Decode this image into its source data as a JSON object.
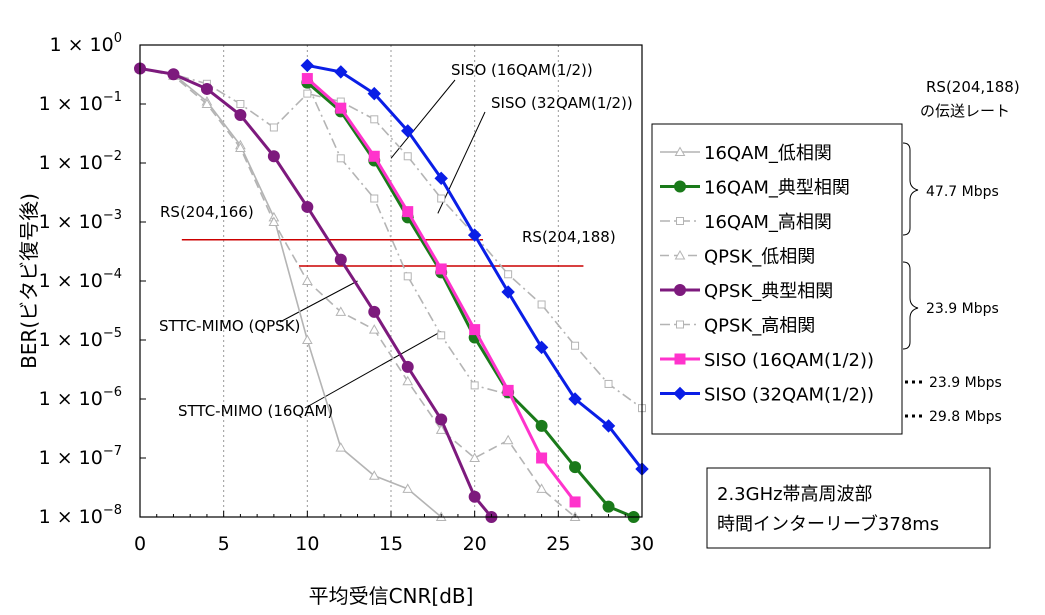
{
  "chart_data": {
    "type": "line",
    "title": "",
    "xlabel": "平均受信CNR[dB]",
    "ylabel": "BER(ビタビ復号後)",
    "x_scale": "linear",
    "y_scale": "log",
    "xlim": [
      0,
      30
    ],
    "ylim": [
      1e-08,
      1
    ],
    "x_ticks": [
      0,
      5,
      10,
      15,
      20,
      25,
      30
    ],
    "x_tick_labels": [
      "0",
      "5",
      "10",
      "15",
      "20",
      "25",
      "30"
    ],
    "y_tick_labels": [
      {
        "base": "1 × 10",
        "exp": "0"
      },
      {
        "base": "1 × 10",
        "exp": "−1"
      },
      {
        "base": "1 × 10",
        "exp": "−2"
      },
      {
        "base": "1 × 10",
        "exp": "−3"
      },
      {
        "base": "1 × 10",
        "exp": "−4"
      },
      {
        "base": "1 × 10",
        "exp": "−5"
      },
      {
        "base": "1 × 10",
        "exp": "−6"
      },
      {
        "base": "1 × 10",
        "exp": "−7"
      },
      {
        "base": "1 × 10",
        "exp": "−8"
      }
    ],
    "grid": "vertical dotted",
    "legend_position": "right",
    "series": [
      {
        "name": "16QAM_低相関",
        "color": "#b4b4b4",
        "marker": "triangle-open",
        "line": "solid",
        "x": [
          0,
          2,
          4,
          6,
          8,
          10,
          12,
          14,
          16,
          18
        ],
        "y": [
          0.4,
          0.32,
          0.11,
          0.02,
          0.0012,
          1e-05,
          1.5e-07,
          5e-08,
          3e-08,
          1e-08
        ]
      },
      {
        "name": "16QAM_典型相関",
        "color": "#1a7a1a",
        "marker": "circle-filled",
        "line": "solid",
        "x": [
          10,
          12,
          14,
          16,
          18,
          20,
          22,
          24,
          26,
          28,
          29.5
        ],
        "y": [
          0.23,
          0.075,
          0.011,
          0.0012,
          0.00014,
          1.1e-05,
          1.3e-06,
          3.5e-07,
          7e-08,
          1.5e-08,
          1e-08
        ]
      },
      {
        "name": "16QAM_高相関",
        "color": "#b4b4b4",
        "marker": "square-open",
        "line": "dash-dot",
        "x": [
          10,
          12,
          14,
          16,
          18,
          20,
          22
        ],
        "y": [
          0.22,
          0.012,
          0.0025,
          0.00012,
          1.2e-05,
          1.7e-06,
          1.2e-06
        ]
      },
      {
        "name": "QPSK_低相関",
        "color": "#b4b4b4",
        "marker": "triangle-open",
        "line": "dashed",
        "x": [
          0,
          2,
          4,
          6,
          8,
          10,
          12,
          14,
          16,
          18,
          20,
          22,
          24,
          26
        ],
        "y": [
          0.4,
          0.3,
          0.1,
          0.018,
          0.001,
          0.0001,
          3e-05,
          1.5e-05,
          2e-06,
          3e-07,
          1e-07,
          2e-07,
          3e-08,
          1e-08
        ]
      },
      {
        "name": "QPSK_典型相関",
        "color": "#7d1a7d",
        "marker": "circle-filled",
        "line": "solid",
        "x": [
          0,
          2,
          4,
          6,
          8,
          10,
          12,
          14,
          16,
          18,
          20,
          21
        ],
        "y": [
          0.4,
          0.32,
          0.18,
          0.065,
          0.013,
          0.0018,
          0.00023,
          3e-05,
          3.5e-06,
          4.5e-07,
          2.2e-08,
          1e-08
        ]
      },
      {
        "name": "QPSK_高相関",
        "color": "#b4b4b4",
        "marker": "square-open",
        "line": "dash-dot",
        "x": [
          0,
          2,
          4,
          6,
          8,
          10,
          12,
          14,
          16,
          18,
          20,
          22,
          24,
          26,
          28,
          30
        ],
        "y": [
          0.4,
          0.32,
          0.22,
          0.1,
          0.04,
          0.15,
          0.11,
          0.055,
          0.013,
          0.0025,
          0.0006,
          0.00013,
          4e-05,
          8e-06,
          1.8e-06,
          7e-07
        ]
      },
      {
        "name": "SISO (16QAM(1/2))",
        "color": "#ff33cc",
        "marker": "square-filled",
        "line": "solid",
        "x": [
          10,
          12,
          14,
          16,
          18,
          20,
          22,
          24,
          26
        ],
        "y": [
          0.27,
          0.085,
          0.013,
          0.0015,
          0.00016,
          1.5e-05,
          1.4e-06,
          1e-07,
          1.8e-08
        ]
      },
      {
        "name": "SISO (32QAM(1/2))",
        "color": "#0a1ee6",
        "marker": "diamond-filled",
        "line": "solid",
        "x": [
          10,
          12,
          14,
          16,
          18,
          20,
          22,
          24,
          26,
          28,
          30
        ],
        "y": [
          0.45,
          0.35,
          0.15,
          0.035,
          0.0055,
          0.0006,
          6.5e-05,
          7.5e-06,
          1e-06,
          3.5e-07,
          6.5e-08
        ]
      }
    ],
    "reference_lines": [
      {
        "label": "RS(204,166)",
        "y": 0.0005,
        "x_range": [
          2.5,
          20.5
        ],
        "color": "#cc0000"
      },
      {
        "label": "RS(204,188)",
        "y": 0.00018,
        "x_range": [
          9.5,
          26.5
        ],
        "color": "#cc0000"
      }
    ],
    "annotations": [
      {
        "text": "SISO (16QAM(1/2))"
      },
      {
        "text": "SISO (32QAM(1/2))"
      },
      {
        "text": "STTC-MIMO (QPSK)"
      },
      {
        "text": "STTC-MIMO (16QAM)"
      }
    ],
    "rate_header": [
      "RS(204,188)",
      "の伝送レート"
    ],
    "rates": [
      {
        "text": "47.7 Mbps",
        "applies_to": [
          "16QAM_低相関",
          "16QAM_典型相関",
          "16QAM_高相関"
        ]
      },
      {
        "text": "23.9 Mbps",
        "applies_to": [
          "QPSK_低相関",
          "QPSK_典型相関",
          "QPSK_高相関"
        ]
      },
      {
        "text": "23.9 Mbps",
        "applies_to": [
          "SISO (16QAM(1/2))"
        ]
      },
      {
        "text": "29.8 Mbps",
        "applies_to": [
          "SISO (32QAM(1/2))"
        ]
      }
    ],
    "info_box": [
      "2.3GHz帯高周波部",
      "時間インターリーブ378ms"
    ]
  }
}
